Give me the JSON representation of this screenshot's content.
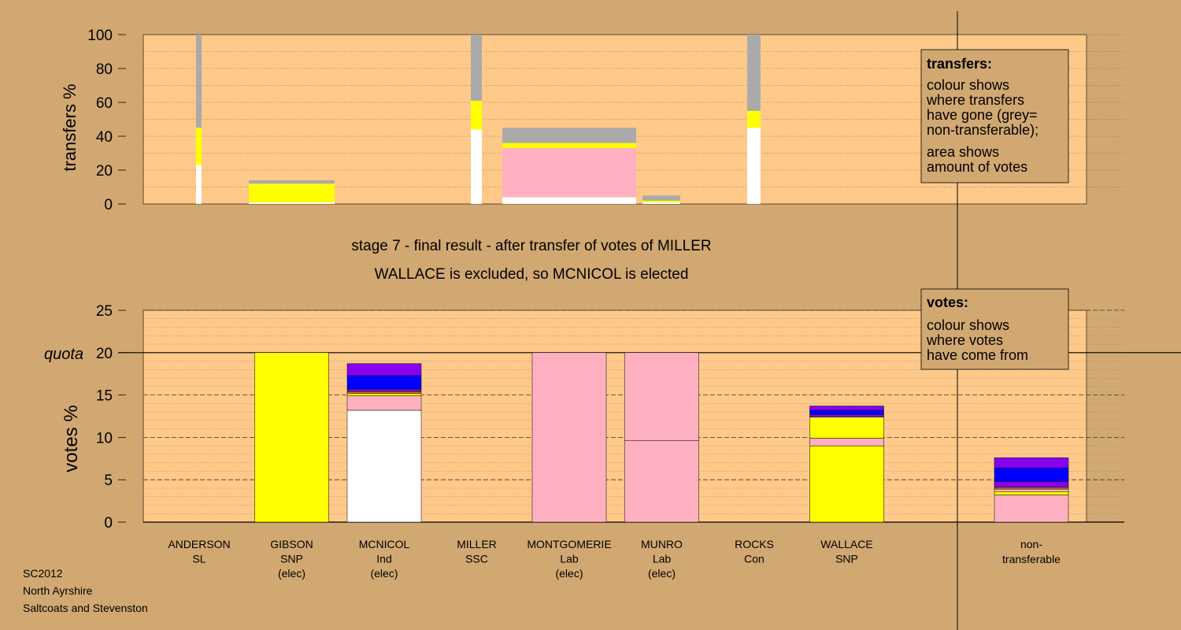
{
  "chart_data": [
    {
      "type": "bar",
      "ylabel": "transfers %",
      "ylim": [
        0,
        100
      ],
      "yticks": [
        0,
        20,
        40,
        60,
        80,
        100
      ],
      "grid": true,
      "segments_note": "",
      "bars": [
        {
          "candidate": "ANDERSON",
          "segments": [
            {
              "color": "white",
              "from": 0,
              "to": 23
            },
            {
              "color": "yellow",
              "from": 23,
              "to": 45
            },
            {
              "color": "grey",
              "from": 45,
              "to": 100
            }
          ]
        },
        {
          "candidate": "GIBSON",
          "segments": [
            {
              "color": "white",
              "from": 0,
              "to": 1
            },
            {
              "color": "yellow",
              "from": 1,
              "to": 12
            },
            {
              "color": "grey",
              "from": 12,
              "to": 14
            }
          ]
        },
        {
          "candidate": "MCNICOL",
          "segments": [
            {
              "color": "white",
              "from": 0,
              "to": 44
            },
            {
              "color": "yellow",
              "from": 44,
              "to": 61
            },
            {
              "color": "grey",
              "from": 61,
              "to": 100
            }
          ]
        },
        {
          "candidate": "MONTGOMERIE",
          "segments": [
            {
              "color": "white",
              "from": 0,
              "to": 4
            },
            {
              "color": "pink",
              "from": 4,
              "to": 33
            },
            {
              "color": "yellow",
              "from": 33,
              "to": 36
            },
            {
              "color": "grey",
              "from": 36,
              "to": 45
            }
          ]
        },
        {
          "candidate": "MUNRO",
          "segments": [
            {
              "color": "white",
              "from": 0,
              "to": 1
            },
            {
              "color": "yellow",
              "from": 1,
              "to": 2
            },
            {
              "color": "grey",
              "from": 2,
              "to": 5
            }
          ]
        },
        {
          "candidate": "ROCKS",
          "segments": [
            {
              "color": "white",
              "from": 0,
              "to": 45
            },
            {
              "color": "yellow",
              "from": 45,
              "to": 55
            },
            {
              "color": "grey",
              "from": 55,
              "to": 100
            }
          ]
        }
      ],
      "legend": {
        "title": "transfers:",
        "lines1": [
          "colour shows",
          "where transfers",
          "have gone (grey=",
          "non-transferable);"
        ],
        "lines2": [
          "area shows",
          "amount of votes"
        ]
      }
    },
    {
      "type": "bar",
      "ylabel": "votes %",
      "ylim": [
        0,
        25
      ],
      "yticks": [
        0,
        5,
        10,
        15,
        20,
        25
      ],
      "quota": {
        "label": "quota",
        "value": 20
      },
      "grid": true,
      "bars": [
        {
          "candidate": "ANDERSON",
          "segments": []
        },
        {
          "candidate": "GIBSON",
          "segments": [
            {
              "color": "yellow",
              "from": 0,
              "to": 20
            }
          ]
        },
        {
          "candidate": "MCNICOL",
          "segments": [
            {
              "color": "white",
              "from": 0,
              "to": 13.2
            },
            {
              "color": "pink",
              "from": 13.2,
              "to": 14.9
            },
            {
              "color": "yellow",
              "from": 14.9,
              "to": 15.2
            },
            {
              "color": "orange",
              "from": 15.2,
              "to": 15.4
            },
            {
              "color": "purple",
              "from": 15.4,
              "to": 15.7
            },
            {
              "color": "blue",
              "from": 15.7,
              "to": 17.3
            },
            {
              "color": "purple",
              "from": 17.3,
              "to": 18.7
            }
          ]
        },
        {
          "candidate": "MILLER",
          "segments": []
        },
        {
          "candidate": "MONTGOMERIE",
          "segments": [
            {
              "color": "pink",
              "from": 0,
              "to": 20
            }
          ]
        },
        {
          "candidate": "MUNRO",
          "segments": [
            {
              "color": "pink",
              "from": 0,
              "to": 9.6
            },
            {
              "color": "pink",
              "from": 9.6,
              "to": 20
            }
          ]
        },
        {
          "candidate": "ROCKS",
          "segments": []
        },
        {
          "candidate": "WALLACE",
          "segments": [
            {
              "color": "yellow",
              "from": 0,
              "to": 9
            },
            {
              "color": "pink",
              "from": 9,
              "to": 9.9
            },
            {
              "color": "yellow",
              "from": 9.9,
              "to": 12.4
            },
            {
              "color": "purple",
              "from": 12.4,
              "to": 12.7
            },
            {
              "color": "blue",
              "from": 12.7,
              "to": 13.2
            },
            {
              "color": "purple",
              "from": 13.2,
              "to": 13.7
            }
          ]
        },
        {
          "candidate": "non-transferable",
          "segments": [
            {
              "color": "pink",
              "from": 0,
              "to": 3.2
            },
            {
              "color": "yellow",
              "from": 3.2,
              "to": 3.6
            },
            {
              "color": "pink",
              "from": 3.6,
              "to": 3.9
            },
            {
              "color": "orange",
              "from": 3.9,
              "to": 4.1
            },
            {
              "color": "purple",
              "from": 4.1,
              "to": 4.8
            },
            {
              "color": "blue",
              "from": 4.8,
              "to": 6.4
            },
            {
              "color": "purple",
              "from": 6.4,
              "to": 7.6
            }
          ]
        }
      ],
      "legend": {
        "title": "votes:",
        "lines1": [
          "colour shows",
          "where votes",
          "have come from"
        ]
      }
    }
  ],
  "title_lines": [
    "stage 7 - final result - after transfer of votes of MILLER",
    "WALLACE is excluded, so MCNICOL is elected"
  ],
  "candidates": [
    {
      "name": "ANDERSON",
      "party": "SL",
      "status": ""
    },
    {
      "name": "GIBSON",
      "party": "SNP",
      "status": "(elec)"
    },
    {
      "name": "MCNICOL",
      "party": "Ind",
      "status": "(elec)"
    },
    {
      "name": "MILLER",
      "party": "SSC",
      "status": ""
    },
    {
      "name": "MONTGOMERIE",
      "party": "Lab",
      "status": "(elec)"
    },
    {
      "name": "MUNRO",
      "party": "Lab",
      "status": "(elec)"
    },
    {
      "name": "ROCKS",
      "party": "Con",
      "status": ""
    },
    {
      "name": "WALLACE",
      "party": "SNP",
      "status": ""
    }
  ],
  "nontransferable_label": [
    "non-",
    "transferable"
  ],
  "footer": [
    "SC2012",
    "North Ayrshire",
    "Saltcoats and Stevenston"
  ],
  "colors": {
    "background": "#d2a872",
    "plot": "#ffc98a",
    "white": "#ffffff",
    "yellow": "#ffff00",
    "grey": "#aaaaaa",
    "pink": "#ffb0c0",
    "blue": "#0000ff",
    "purple": "#8800ee",
    "orange": "#d08000"
  }
}
